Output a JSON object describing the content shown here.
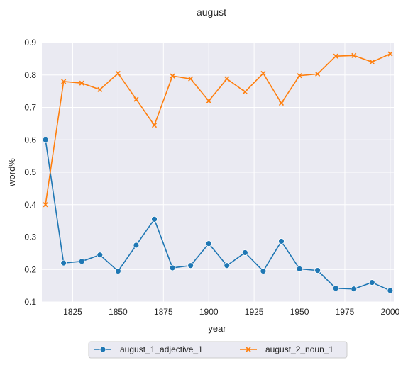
{
  "chart_data": {
    "type": "line",
    "title": "august",
    "xlabel": "year",
    "ylabel": "word%",
    "xlim": [
      1808,
      2002
    ],
    "ylim": [
      0.1,
      0.9
    ],
    "x_ticks": [
      1825,
      1850,
      1875,
      1900,
      1925,
      1950,
      1975,
      2000
    ],
    "y_ticks": [
      "0.1",
      "0.2",
      "0.3",
      "0.4",
      "0.5",
      "0.6",
      "0.7",
      "0.8",
      "0.9"
    ],
    "grid": true,
    "legend_position": "bottom-center",
    "x": [
      1810,
      1820,
      1830,
      1840,
      1850,
      1860,
      1870,
      1880,
      1890,
      1900,
      1910,
      1920,
      1930,
      1940,
      1950,
      1960,
      1970,
      1980,
      1990,
      2000
    ],
    "series": [
      {
        "name": "august_1_adjective_1",
        "marker": "circle",
        "color": "#1f77b4",
        "values": [
          0.6,
          0.22,
          0.225,
          0.245,
          0.195,
          0.275,
          0.355,
          0.205,
          0.212,
          0.28,
          0.212,
          0.252,
          0.195,
          0.287,
          0.202,
          0.197,
          0.142,
          0.14,
          0.16,
          0.135
        ]
      },
      {
        "name": "august_2_noun_1",
        "marker": "x",
        "color": "#ff7f0e",
        "values": [
          0.4,
          0.78,
          0.775,
          0.755,
          0.805,
          0.725,
          0.645,
          0.797,
          0.788,
          0.72,
          0.788,
          0.748,
          0.805,
          0.713,
          0.798,
          0.803,
          0.858,
          0.86,
          0.84,
          0.865
        ]
      }
    ]
  },
  "colors": {
    "plot_background": "#eaeaf2",
    "grid": "#ffffff"
  }
}
